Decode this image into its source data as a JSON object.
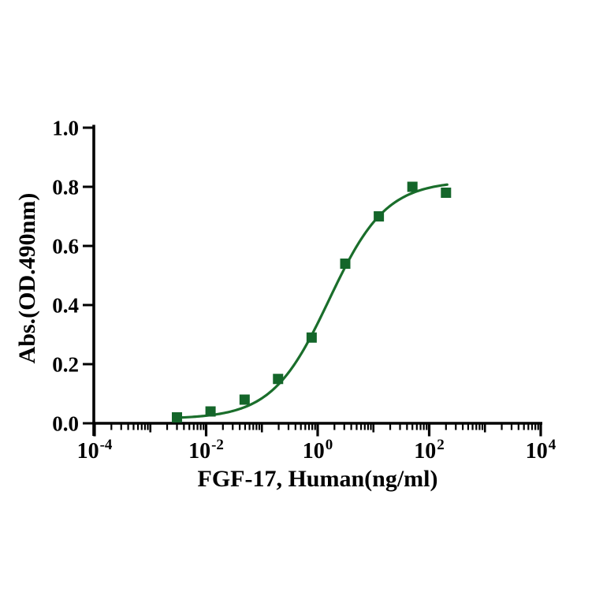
{
  "page": {
    "background_color": "#ffffff"
  },
  "chart_data": {
    "type": "scatter",
    "title": "",
    "xlabel": "FGF-17, Human(ng/ml)",
    "ylabel": "Abs.(OD.490nm)",
    "x_scale": "log10",
    "x_tick_base": "10",
    "x_ticks_exponents": [
      -4,
      -2,
      0,
      2,
      4
    ],
    "x_range_exponents": [
      -4,
      4
    ],
    "y_ticks": [
      "0.0",
      "0.2",
      "0.4",
      "0.6",
      "0.8",
      "1.0"
    ],
    "ylim": [
      0.0,
      1.0
    ],
    "grid": false,
    "legend": null,
    "points": [
      {
        "x": 0.003,
        "y": 0.02
      },
      {
        "x": 0.012,
        "y": 0.04
      },
      {
        "x": 0.049,
        "y": 0.08
      },
      {
        "x": 0.195,
        "y": 0.15
      },
      {
        "x": 0.78,
        "y": 0.29
      },
      {
        "x": 3.125,
        "y": 0.54
      },
      {
        "x": 12.5,
        "y": 0.7
      },
      {
        "x": 50,
        "y": 0.8
      },
      {
        "x": 200,
        "y": 0.78
      }
    ],
    "fit_curve": {
      "model": "4PL",
      "bottom": 0.015,
      "top": 0.82,
      "ec50": 1.6,
      "hill": 0.85,
      "x_start": 0.003,
      "x_end": 210
    },
    "marker_shape": "square",
    "marker_size_px": 13,
    "marker_color": "#14662a",
    "line_color": "#1a6e2b",
    "axis_color": "#000000",
    "text_color": "#000000"
  }
}
